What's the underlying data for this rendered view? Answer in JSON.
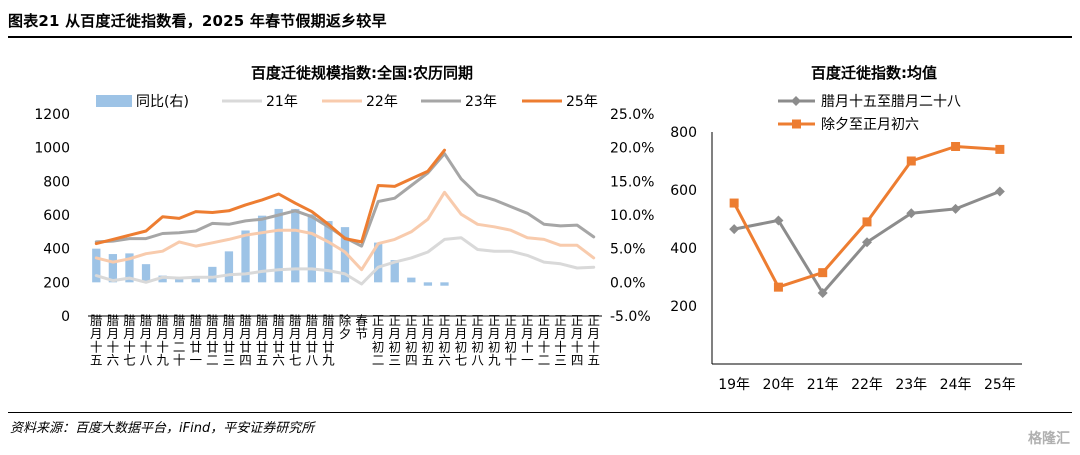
{
  "header": {
    "title": "图表21    从百度迁徙指数看，2025 年春节假期返乡较早"
  },
  "footer": {
    "source": "资料来源：百度大数据平台，iFind，平安证券研究所",
    "watermark": "格隆汇"
  },
  "chart_data": [
    {
      "type": "bar+line",
      "title": "百度迁徙规模指数:全国:农历同期",
      "categories": [
        "腊月十五",
        "腊月十六",
        "腊月十七",
        "腊月十八",
        "腊月十九",
        "腊月二十",
        "腊月廿一",
        "腊月廿二",
        "腊月廿三",
        "腊月廿四",
        "腊月廿五",
        "腊月廿六",
        "腊月廿七",
        "腊月廿八",
        "腊月廿九",
        "除夕",
        "春节",
        "正月初二",
        "正月初三",
        "正月初四",
        "正月初五",
        "正月初六",
        "正月初七",
        "正月初八",
        "正月初九",
        "正月初十",
        "正月十一",
        "正月十二",
        "正月十三",
        "正月十四",
        "正月十五"
      ],
      "axis_labels": [
        "腊月十五",
        "腊月十六",
        "腊月十七",
        "腊月十八",
        "腊月十九",
        "腊月二十",
        "腊月廿一",
        "腊月廿二",
        "腊月廿三",
        "腊月廿四",
        "腊月廿五",
        "腊月廿六",
        "腊月廿七",
        "腊月廿八",
        "腊月廿九",
        "除夕",
        "春节",
        "正月初二",
        "正月初三",
        "正月初四",
        "正月初五",
        "正月初六",
        "正月初七",
        "正月初八",
        "正月初九",
        "正月初十",
        "正月十一",
        "正月十二",
        "正月十三",
        "正月十四",
        "正月十五"
      ],
      "ylim_left": [
        0,
        1200
      ],
      "yticks_left": [
        0,
        200,
        400,
        600,
        800,
        1000,
        1200
      ],
      "ylim_right": [
        -5,
        25
      ],
      "yticks_right": [
        "-5.0%",
        "0.0%",
        "5.0%",
        "10.0%",
        "15.0%",
        "20.0%",
        "25.0%"
      ],
      "series": [
        {
          "name": "同比(右)",
          "kind": "bar",
          "axis": "right",
          "color": "#9dc3e6",
          "values": [
            5.0,
            4.2,
            4.3,
            2.7,
            1.0,
            0.6,
            0.6,
            2.3,
            4.6,
            7.7,
            9.9,
            10.9,
            10.9,
            10.1,
            9.1,
            8.2,
            null,
            5.9,
            3.3,
            0.7,
            -0.5,
            -0.5,
            null,
            null,
            null,
            null,
            null,
            null,
            null,
            null,
            null
          ]
        },
        {
          "name": "21年",
          "kind": "line",
          "axis": "left",
          "color": "#d9d9d9",
          "values": [
            240,
            210,
            225,
            200,
            230,
            225,
            230,
            230,
            245,
            250,
            265,
            275,
            280,
            280,
            270,
            250,
            190,
            290,
            320,
            345,
            380,
            455,
            465,
            395,
            385,
            385,
            360,
            320,
            310,
            285,
            290
          ]
        },
        {
          "name": "22年",
          "kind": "line",
          "axis": "left",
          "color": "#f8cbad",
          "values": [
            345,
            320,
            340,
            370,
            385,
            440,
            415,
            435,
            455,
            480,
            495,
            510,
            510,
            490,
            440,
            380,
            275,
            430,
            455,
            500,
            575,
            735,
            605,
            545,
            530,
            510,
            465,
            455,
            420,
            420,
            345
          ]
        },
        {
          "name": "23年",
          "kind": "line",
          "axis": "left",
          "color": "#a6a6a6",
          "values": [
            440,
            445,
            460,
            460,
            490,
            495,
            505,
            550,
            545,
            565,
            575,
            600,
            625,
            590,
            530,
            465,
            415,
            680,
            700,
            775,
            850,
            965,
            815,
            720,
            690,
            650,
            610,
            545,
            535,
            540,
            470
          ]
        },
        {
          "name": "25年",
          "kind": "line",
          "axis": "left",
          "color": "#ed7d31",
          "values": [
            430,
            455,
            480,
            505,
            590,
            580,
            620,
            615,
            625,
            660,
            690,
            725,
            670,
            620,
            545,
            460,
            440,
            775,
            770,
            815,
            860,
            985,
            null,
            null,
            null,
            null,
            null,
            null,
            null,
            null,
            null
          ]
        }
      ]
    },
    {
      "type": "line",
      "title": "百度迁徙指数:均值",
      "categories": [
        "19年",
        "20年",
        "21年",
        "22年",
        "23年",
        "24年",
        "25年"
      ],
      "ylim": [
        0,
        800
      ],
      "yticks": [
        200,
        400,
        600,
        800
      ],
      "series": [
        {
          "name": "腊月十五至腊月二十八",
          "color": "#8c8c8c",
          "marker": "diamond",
          "values": [
            465,
            495,
            245,
            420,
            520,
            535,
            595
          ]
        },
        {
          "name": "除夕至正月初六",
          "color": "#ed7d31",
          "marker": "square",
          "values": [
            555,
            265,
            315,
            490,
            700,
            750,
            740
          ]
        }
      ]
    }
  ]
}
